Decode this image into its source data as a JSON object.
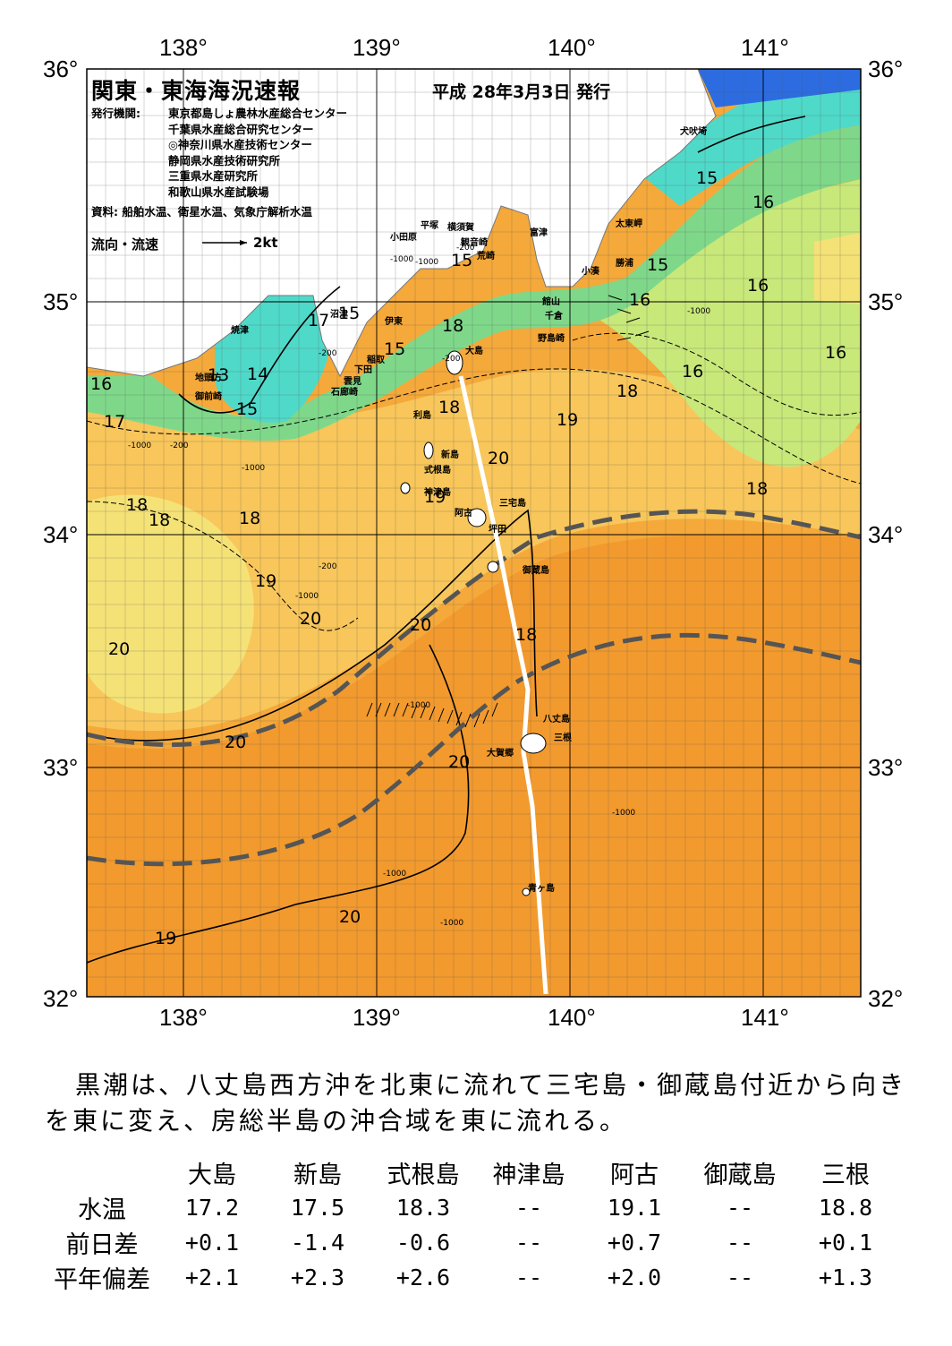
{
  "map": {
    "title": "関東・東海海況速報",
    "issued": "平成 28年3月3日 発行",
    "org_label": "発行機関:",
    "organizations": [
      "東京都島しょ農林水産総合センター",
      "千葉県水産総合研究センター",
      "◎神奈川県水産技術センター",
      "静岡県水産技術研究所",
      "三重県水産研究所",
      "和歌山県水産試験場"
    ],
    "sources": "資料: 船舶水温、衛星水温、気象庁解析水温",
    "legend": {
      "label": "流向・流速",
      "value": "2kt"
    },
    "lon_labels": [
      "138°",
      "139°",
      "140°",
      "141°"
    ],
    "lat_labels": [
      "36°",
      "35°",
      "34°",
      "33°",
      "32°"
    ],
    "place_labels": [
      "犬吠埼",
      "太東岬",
      "勝浦",
      "小湊",
      "富津",
      "横須賀",
      "観音崎",
      "平塚",
      "荒崎",
      "館山",
      "千倉",
      "野島崎",
      "小田原",
      "沼津",
      "伊東",
      "焼津",
      "稲取",
      "下田",
      "雲見",
      "石廊崎",
      "地頭方",
      "御前崎",
      "大島",
      "利島",
      "新島",
      "式根島",
      "神津島",
      "三宅島",
      "阿古",
      "坪田",
      "御蔵島",
      "八丈島",
      "三根",
      "大賀郷",
      "青ヶ島"
    ],
    "isotherm_labels": [
      "15",
      "16",
      "15",
      "15",
      "16",
      "16",
      "16",
      "16",
      "15",
      "17",
      "13",
      "14",
      "15",
      "16",
      "17",
      "18",
      "15",
      "18",
      "18",
      "19",
      "20",
      "19",
      "18",
      "18",
      "18",
      "18",
      "19",
      "20",
      "20",
      "18",
      "20",
      "20",
      "20",
      "20",
      "19"
    ],
    "depth_labels": [
      "-1000",
      "-200",
      "-1000",
      "-200",
      "-200",
      "-1000",
      "-200",
      "-1000",
      "-200",
      "-1000",
      "-1000",
      "-1000",
      "-1000",
      "-1000",
      "-1000"
    ],
    "colors": {
      "warm_orange": "#F29A2E",
      "orange": "#F5A93A",
      "light_orange": "#F8C65A",
      "yellow": "#F5E277",
      "pale_green": "#C8E87A",
      "green": "#7FD88A",
      "aqua": "#4FD9C9",
      "blue": "#2C6CE0",
      "land": "#FFFFFF"
    }
  },
  "summary": "黒潮は、八丈島西方沖を北東に流れて三宅島・御蔵島付近から向きを東に変え、房総半島の沖合域を東に流れる。",
  "table": {
    "headers": [
      "大島",
      "新島",
      "式根島",
      "神津島",
      "阿古",
      "御蔵島",
      "三根"
    ],
    "rows": [
      {
        "label": "水温",
        "values": [
          "17.2",
          "17.5",
          "18.3",
          "--",
          "19.1",
          "--",
          "18.8"
        ]
      },
      {
        "label": "前日差",
        "values": [
          "+0.1",
          "-1.4",
          "-0.6",
          "--",
          "+0.7",
          "--",
          "+0.1"
        ]
      },
      {
        "label": "平年偏差",
        "values": [
          "+2.1",
          "+2.3",
          "+2.6",
          "--",
          "+2.0",
          "--",
          "+1.3"
        ]
      }
    ]
  }
}
